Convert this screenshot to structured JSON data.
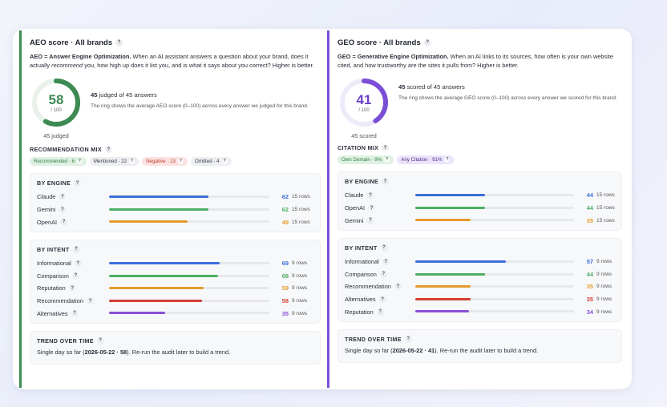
{
  "aeo": {
    "title": "AEO score · All brands",
    "desc_bold": "AEO = Answer Engine Optimization.",
    "desc_1": " When an AI assistant answers a question about your brand, does it actually ",
    "desc_em": "recommend",
    "desc_2": " you, how high up does it list you, and is what it says about you correct? Higher is better.",
    "score": "58",
    "out_of": "/ 100",
    "score_fraction": 0.58,
    "ring_color": "#3d8a52",
    "ring_caption": "45 judged",
    "lead_bold": "45",
    "lead_text": " judged of 45 answers",
    "note": "The ring shows the average AEO score (0–100) across every answer we judged for this brand.",
    "mix_title": "RECOMMENDATION MIX",
    "pills": [
      {
        "label": "Recommended · 6",
        "bg": "#dff1e2",
        "fg": "#2f7d43"
      },
      {
        "label": "Mentioned · 22",
        "bg": "#eceef1",
        "fg": "#3a3f4a"
      },
      {
        "label": "Negative · 13",
        "bg": "#fbe3e1",
        "fg": "#c0392b"
      },
      {
        "label": "Omitted · 4",
        "bg": "#eceef1",
        "fg": "#3a3f4a"
      }
    ],
    "engine_title": "BY ENGINE",
    "engines": [
      {
        "label": "Claude",
        "value": "62",
        "pct": 0.62,
        "rows": "15 rows",
        "color": "#3b6fd8"
      },
      {
        "label": "Gemini",
        "value": "62",
        "pct": 0.62,
        "rows": "15 rows",
        "color": "#4caf63"
      },
      {
        "label": "OpenAI",
        "value": "49",
        "pct": 0.49,
        "rows": "15 rows",
        "color": "#e59a2c"
      }
    ],
    "intent_title": "BY INTENT",
    "intents": [
      {
        "label": "Informational",
        "value": "69",
        "pct": 0.69,
        "rows": "9 rows",
        "color": "#3b6fd8"
      },
      {
        "label": "Comparison",
        "value": "68",
        "pct": 0.68,
        "rows": "9 rows",
        "color": "#4caf63"
      },
      {
        "label": "Reputation",
        "value": "59",
        "pct": 0.59,
        "rows": "9 rows",
        "color": "#e59a2c"
      },
      {
        "label": "Recommendation",
        "value": "58",
        "pct": 0.58,
        "rows": "9 rows",
        "color": "#d43f33"
      },
      {
        "label": "Alternatives",
        "value": "35",
        "pct": 0.35,
        "rows": "9 rows",
        "color": "#8b4fd8"
      }
    ],
    "trend_title": "TREND OVER TIME",
    "trend_1": "Single day so far (",
    "trend_bold": "2026-05-22 · 58",
    "trend_2": "). Re-run the audit later to build a trend."
  },
  "geo": {
    "title": "GEO score · All brands",
    "desc_bold": "GEO = Generative Engine Optimization.",
    "desc_1": " When an AI links to its sources, how often is your own website cited, and how trustworthy are the sites it pulls from? Higher is better.",
    "score": "41",
    "out_of": "/ 100",
    "score_fraction": 0.41,
    "ring_color": "#7a4fd6",
    "ring_caption": "45 scored",
    "lead_bold": "45",
    "lead_text": " scored of 45 answers",
    "note": "The ring shows the average GEO score (0–100) across every answer we scored for this brand.",
    "mix_title": "CITATION MIX",
    "pills": [
      {
        "label": "Own Domain · 9%",
        "bg": "#dff1e2",
        "fg": "#2f7d43"
      },
      {
        "label": "Any Citation · 91%",
        "bg": "#ebe4fb",
        "fg": "#4a2f8a"
      }
    ],
    "engine_title": "BY ENGINE",
    "engines": [
      {
        "label": "Claude",
        "value": "44",
        "pct": 0.44,
        "rows": "15 rows",
        "color": "#3b6fd8"
      },
      {
        "label": "OpenAI",
        "value": "44",
        "pct": 0.44,
        "rows": "15 rows",
        "color": "#4caf63"
      },
      {
        "label": "Gemini",
        "value": "35",
        "pct": 0.35,
        "rows": "15 rows",
        "color": "#e59a2c"
      }
    ],
    "intent_title": "BY INTENT",
    "intents": [
      {
        "label": "Informational",
        "value": "57",
        "pct": 0.57,
        "rows": "9 rows",
        "color": "#3b6fd8"
      },
      {
        "label": "Comparison",
        "value": "44",
        "pct": 0.44,
        "rows": "9 rows",
        "color": "#4caf63"
      },
      {
        "label": "Recommendation",
        "value": "35",
        "pct": 0.35,
        "rows": "9 rows",
        "color": "#e59a2c"
      },
      {
        "label": "Alternatives",
        "value": "35",
        "pct": 0.35,
        "rows": "9 rows",
        "color": "#d43f33"
      },
      {
        "label": "Reputation",
        "value": "34",
        "pct": 0.34,
        "rows": "9 rows",
        "color": "#8b4fd8"
      }
    ],
    "trend_title": "TREND OVER TIME",
    "trend_1": "Single day so far (",
    "trend_bold": "2026-05-22 · 41",
    "trend_2": "). Re-run the audit later to build a trend."
  }
}
